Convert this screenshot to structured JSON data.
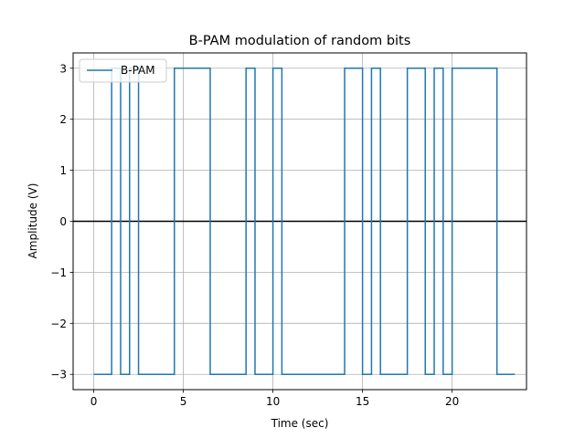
{
  "chart_data": {
    "type": "line",
    "title": "B-PAM modulation of random bits",
    "xlabel": "Time (sec)",
    "ylabel": "Amplitude (V)",
    "xlim": [
      -1.15,
      24.15
    ],
    "ylim": [
      -3.3,
      3.3
    ],
    "x_ticks": [
      0,
      5,
      10,
      15,
      20
    ],
    "x_tick_labels": [
      "0",
      "5",
      "10",
      "15",
      "20"
    ],
    "y_ticks": [
      -3,
      -2,
      -1,
      0,
      1,
      2,
      3
    ],
    "y_tick_labels": [
      "−3",
      "−2",
      "−1",
      "0",
      "1",
      "2",
      "3"
    ],
    "grid": true,
    "legend_position": "top-left",
    "zero_line": {
      "y": 0,
      "color": "#000000"
    },
    "colors": {
      "series": "#1f77b4",
      "grid": "#b0b0b0"
    },
    "series": [
      {
        "name": "B-PAM",
        "step": "post",
        "x": [
          0,
          0.5,
          1,
          1.5,
          2,
          2.5,
          3,
          3.5,
          4,
          4.5,
          5,
          5.5,
          6,
          6.5,
          7,
          7.5,
          8,
          8.5,
          9,
          9.5,
          10,
          10.5,
          11,
          11.5,
          12,
          12.5,
          13,
          13.5,
          14,
          14.5,
          15,
          15.5,
          16,
          16.5,
          17,
          17.5,
          18,
          18.5,
          19,
          19.5,
          20,
          20.5,
          21,
          21.5,
          22,
          22.5,
          23
        ],
        "y": [
          -3,
          -3,
          3,
          -3,
          3,
          -3,
          -3,
          -3,
          -3,
          3,
          3,
          3,
          3,
          -3,
          -3,
          -3,
          -3,
          3,
          -3,
          -3,
          3,
          -3,
          -3,
          -3,
          -3,
          -3,
          -3,
          -3,
          3,
          3,
          -3,
          3,
          -3,
          -3,
          -3,
          3,
          3,
          -3,
          3,
          -3,
          3,
          3,
          3,
          3,
          3,
          -3,
          -3
        ]
      }
    ]
  }
}
